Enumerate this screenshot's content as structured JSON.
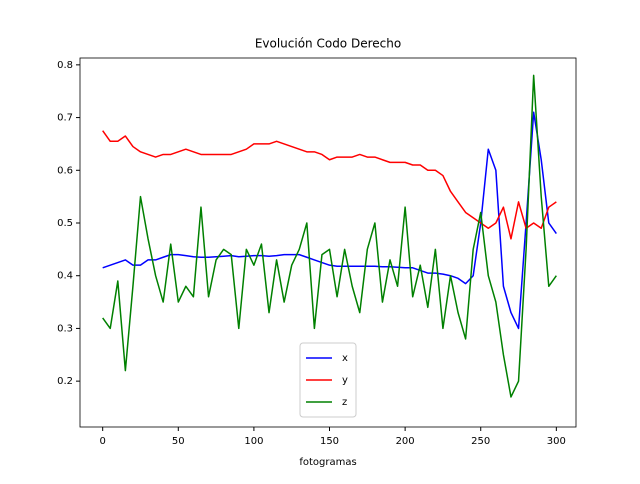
{
  "chart_data": {
    "type": "line",
    "title": "Evolución Codo Derecho",
    "x_label": "fotogramas",
    "x": [
      0,
      5,
      10,
      15,
      20,
      25,
      30,
      35,
      40,
      45,
      50,
      55,
      60,
      65,
      70,
      75,
      80,
      85,
      90,
      95,
      100,
      105,
      110,
      115,
      120,
      125,
      130,
      135,
      140,
      145,
      150,
      155,
      160,
      165,
      170,
      175,
      180,
      185,
      190,
      195,
      200,
      205,
      210,
      215,
      220,
      225,
      230,
      235,
      240,
      245,
      250,
      255,
      260,
      265,
      270,
      275,
      280,
      285,
      290,
      295,
      300
    ],
    "series": [
      {
        "name": "x",
        "color": "#0000ff",
        "values": [
          0.415,
          0.42,
          0.425,
          0.43,
          0.42,
          0.42,
          0.43,
          0.43,
          0.435,
          0.44,
          0.44,
          0.438,
          0.436,
          0.435,
          0.435,
          0.436,
          0.437,
          0.438,
          0.436,
          0.437,
          0.438,
          0.438,
          0.437,
          0.438,
          0.44,
          0.44,
          0.44,
          0.435,
          0.43,
          0.425,
          0.42,
          0.418,
          0.418,
          0.418,
          0.418,
          0.418,
          0.418,
          0.417,
          0.417,
          0.416,
          0.415,
          0.415,
          0.41,
          0.405,
          0.405,
          0.403,
          0.4,
          0.395,
          0.385,
          0.4,
          0.5,
          0.64,
          0.6,
          0.38,
          0.33,
          0.3,
          0.5,
          0.71,
          0.62,
          0.5,
          0.48
        ]
      },
      {
        "name": "y",
        "color": "#ff0000",
        "values": [
          0.675,
          0.655,
          0.655,
          0.665,
          0.645,
          0.635,
          0.63,
          0.625,
          0.63,
          0.63,
          0.635,
          0.64,
          0.635,
          0.63,
          0.63,
          0.63,
          0.63,
          0.63,
          0.635,
          0.64,
          0.65,
          0.65,
          0.65,
          0.655,
          0.65,
          0.645,
          0.64,
          0.635,
          0.635,
          0.63,
          0.62,
          0.625,
          0.625,
          0.625,
          0.63,
          0.625,
          0.625,
          0.62,
          0.615,
          0.615,
          0.615,
          0.61,
          0.61,
          0.6,
          0.6,
          0.59,
          0.56,
          0.54,
          0.52,
          0.51,
          0.5,
          0.49,
          0.5,
          0.53,
          0.47,
          0.54,
          0.49,
          0.5,
          0.49,
          0.53,
          0.54
        ]
      },
      {
        "name": "z",
        "color": "#008000",
        "values": [
          0.32,
          0.3,
          0.39,
          0.22,
          0.38,
          0.55,
          0.47,
          0.4,
          0.35,
          0.46,
          0.35,
          0.38,
          0.36,
          0.53,
          0.36,
          0.43,
          0.45,
          0.44,
          0.3,
          0.45,
          0.42,
          0.46,
          0.33,
          0.43,
          0.35,
          0.42,
          0.45,
          0.5,
          0.3,
          0.44,
          0.45,
          0.36,
          0.45,
          0.38,
          0.33,
          0.45,
          0.5,
          0.35,
          0.43,
          0.38,
          0.53,
          0.36,
          0.42,
          0.34,
          0.45,
          0.3,
          0.4,
          0.33,
          0.28,
          0.45,
          0.52,
          0.4,
          0.35,
          0.25,
          0.17,
          0.2,
          0.45,
          0.78,
          0.55,
          0.38,
          0.4
        ]
      }
    ],
    "xlim": [
      -15,
      313
    ],
    "ylim": [
      0.113,
      0.813
    ],
    "xticks": [
      0,
      50,
      100,
      150,
      200,
      250,
      300
    ],
    "yticks": [
      0.2,
      0.3,
      0.4,
      0.5,
      0.6,
      0.7,
      0.8
    ],
    "legend": "lower center"
  }
}
